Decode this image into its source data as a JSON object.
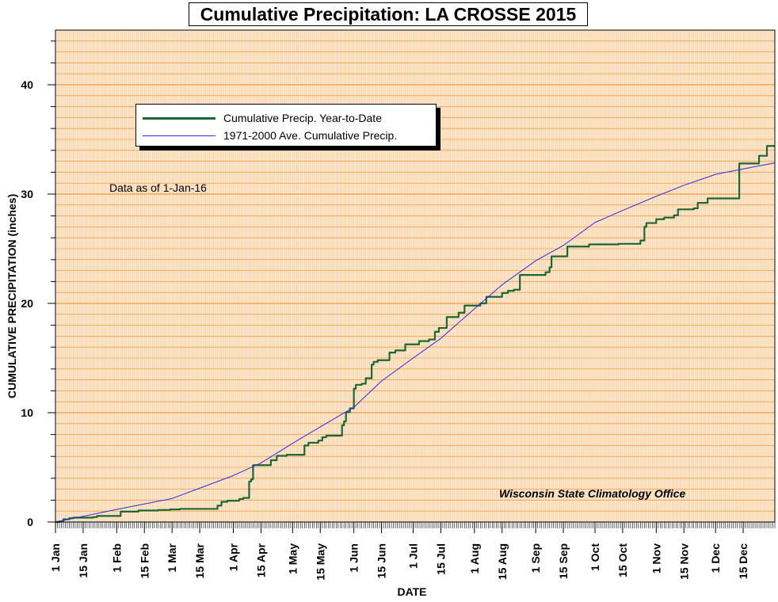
{
  "chart_data": {
    "type": "line",
    "title": "Cumulative Precipitation: LA CROSSE 2015",
    "xlabel": "DATE",
    "ylabel": "CUMULATIVE PRECIPITATION (inches)",
    "ylim": [
      0,
      45
    ],
    "xlim": [
      "2015-01-01",
      "2015-12-31"
    ],
    "y_ticks": [
      0,
      10,
      20,
      30,
      40
    ],
    "x_ticks": [
      "2015-01-01",
      "2015-01-15",
      "2015-02-01",
      "2015-02-15",
      "2015-03-01",
      "2015-03-15",
      "2015-04-01",
      "2015-04-15",
      "2015-05-01",
      "2015-05-15",
      "2015-06-01",
      "2015-06-15",
      "2015-07-01",
      "2015-07-15",
      "2015-08-01",
      "2015-08-15",
      "2015-09-01",
      "2015-09-15",
      "2015-10-01",
      "2015-10-15",
      "2015-11-01",
      "2015-11-15",
      "2015-12-01",
      "2015-12-15"
    ],
    "x_tick_labels": [
      "1 Jan",
      "15 Jan",
      "1 Feb",
      "15 Feb",
      "1 Mar",
      "15 Mar",
      "1 Apr",
      "15 Apr",
      "1 May",
      "15 May",
      "1 Jun",
      "15 Jun",
      "1 Jul",
      "15 Jul",
      "1 Aug",
      "15 Aug",
      "1 Sep",
      "15 Sep",
      "1 Oct",
      "15 Oct",
      "1 Nov",
      "15 Nov",
      "1 Dec",
      "15 Dec"
    ],
    "grid": true,
    "legend_position": "upper-left",
    "annotations": [
      "Data as of 1-Jan-16",
      "Wisconsin State Climatology Office"
    ],
    "series": [
      {
        "name": "Cumulative Precip. Year-to-Date",
        "color": "#1a6634",
        "step": true,
        "points": [
          [
            "2015-01-01",
            0.0
          ],
          [
            "2015-01-03",
            0.05
          ],
          [
            "2015-01-05",
            0.25
          ],
          [
            "2015-01-08",
            0.35
          ],
          [
            "2015-01-10",
            0.4
          ],
          [
            "2015-01-20",
            0.45
          ],
          [
            "2015-01-22",
            0.55
          ],
          [
            "2015-02-03",
            0.95
          ],
          [
            "2015-02-12",
            1.05
          ],
          [
            "2015-02-22",
            1.1
          ],
          [
            "2015-02-28",
            1.15
          ],
          [
            "2015-03-05",
            1.2
          ],
          [
            "2015-03-24",
            1.5
          ],
          [
            "2015-03-26",
            1.85
          ],
          [
            "2015-03-29",
            1.95
          ],
          [
            "2015-04-04",
            2.1
          ],
          [
            "2015-04-06",
            2.2
          ],
          [
            "2015-04-09",
            3.7
          ],
          [
            "2015-04-10",
            3.9
          ],
          [
            "2015-04-11",
            5.2
          ],
          [
            "2015-04-20",
            5.65
          ],
          [
            "2015-04-23",
            6.05
          ],
          [
            "2015-04-28",
            6.15
          ],
          [
            "2015-05-07",
            7.0
          ],
          [
            "2015-05-09",
            7.25
          ],
          [
            "2015-05-14",
            7.45
          ],
          [
            "2015-05-16",
            7.75
          ],
          [
            "2015-05-18",
            7.9
          ],
          [
            "2015-05-26",
            8.85
          ],
          [
            "2015-05-27",
            9.2
          ],
          [
            "2015-05-28",
            10.05
          ],
          [
            "2015-05-30",
            10.4
          ],
          [
            "2015-06-01",
            12.2
          ],
          [
            "2015-06-02",
            12.55
          ],
          [
            "2015-06-05",
            12.65
          ],
          [
            "2015-06-07",
            13.15
          ],
          [
            "2015-06-10",
            14.4
          ],
          [
            "2015-06-11",
            14.65
          ],
          [
            "2015-06-13",
            14.8
          ],
          [
            "2015-06-19",
            15.5
          ],
          [
            "2015-06-22",
            15.7
          ],
          [
            "2015-06-27",
            16.25
          ],
          [
            "2015-07-04",
            16.55
          ],
          [
            "2015-07-09",
            16.7
          ],
          [
            "2015-07-12",
            17.4
          ],
          [
            "2015-07-14",
            17.75
          ],
          [
            "2015-07-18",
            18.75
          ],
          [
            "2015-07-24",
            19.15
          ],
          [
            "2015-07-27",
            19.8
          ],
          [
            "2015-08-04",
            20.0
          ],
          [
            "2015-08-07",
            20.6
          ],
          [
            "2015-08-15",
            20.95
          ],
          [
            "2015-08-18",
            21.15
          ],
          [
            "2015-08-21",
            21.25
          ],
          [
            "2015-08-24",
            22.6
          ],
          [
            "2015-09-06",
            22.85
          ],
          [
            "2015-09-08",
            23.3
          ],
          [
            "2015-09-09",
            24.3
          ],
          [
            "2015-09-17",
            25.2
          ],
          [
            "2015-09-28",
            25.4
          ],
          [
            "2015-10-13",
            25.45
          ],
          [
            "2015-10-24",
            25.75
          ],
          [
            "2015-10-26",
            27.0
          ],
          [
            "2015-10-27",
            27.35
          ],
          [
            "2015-11-01",
            27.7
          ],
          [
            "2015-11-05",
            27.85
          ],
          [
            "2015-11-10",
            28.05
          ],
          [
            "2015-11-12",
            28.6
          ],
          [
            "2015-11-20",
            28.7
          ],
          [
            "2015-11-22",
            29.2
          ],
          [
            "2015-11-27",
            29.6
          ],
          [
            "2015-12-13",
            32.8
          ],
          [
            "2015-12-23",
            33.5
          ],
          [
            "2015-12-27",
            34.4
          ],
          [
            "2015-12-31",
            34.4
          ]
        ]
      },
      {
        "name": "1971-2000 Ave. Cumulative Precip.",
        "color": "#2a2ae0",
        "step": false,
        "points": [
          [
            "2015-01-01",
            0.0
          ],
          [
            "2015-02-01",
            1.15
          ],
          [
            "2015-03-01",
            2.15
          ],
          [
            "2015-04-01",
            4.25
          ],
          [
            "2015-04-15",
            5.4
          ],
          [
            "2015-05-01",
            7.2
          ],
          [
            "2015-05-15",
            8.7
          ],
          [
            "2015-06-01",
            10.5
          ],
          [
            "2015-06-15",
            12.9
          ],
          [
            "2015-07-01",
            15.0
          ],
          [
            "2015-07-15",
            16.8
          ],
          [
            "2015-08-01",
            19.5
          ],
          [
            "2015-08-15",
            21.7
          ],
          [
            "2015-09-01",
            23.9
          ],
          [
            "2015-09-15",
            25.3
          ],
          [
            "2015-10-01",
            27.4
          ],
          [
            "2015-10-15",
            28.5
          ],
          [
            "2015-11-01",
            29.8
          ],
          [
            "2015-11-15",
            30.8
          ],
          [
            "2015-12-01",
            31.8
          ],
          [
            "2015-12-15",
            32.3
          ],
          [
            "2015-12-31",
            32.85
          ]
        ]
      }
    ]
  }
}
